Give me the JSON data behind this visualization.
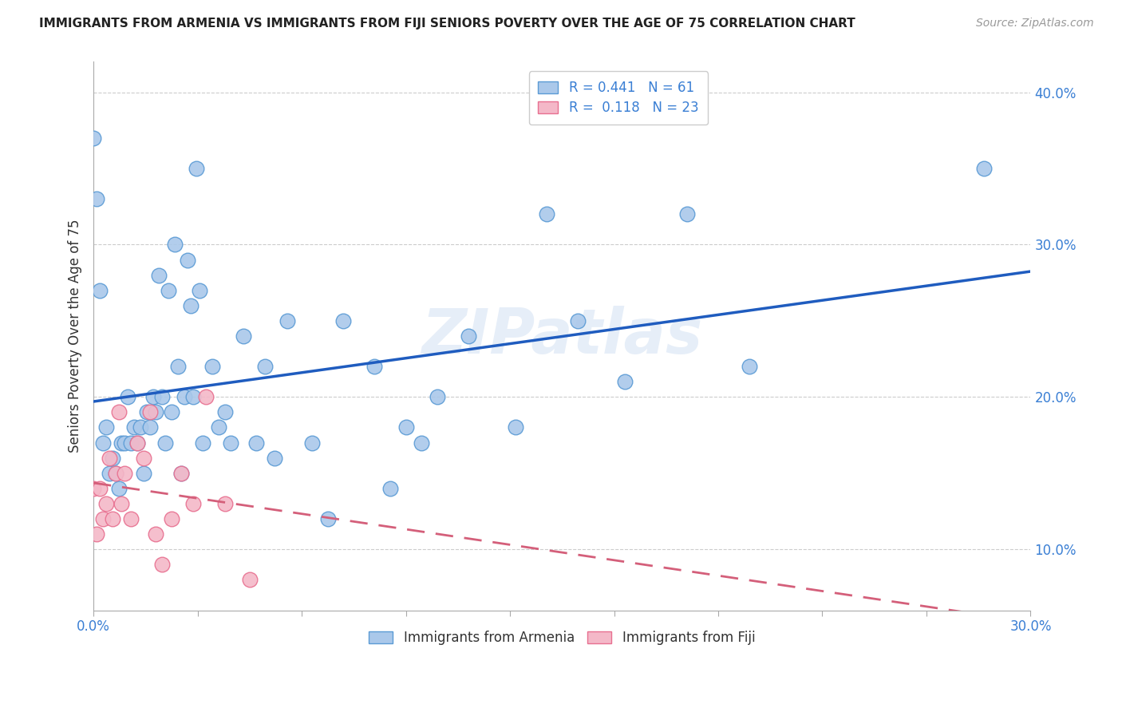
{
  "title": "IMMIGRANTS FROM ARMENIA VS IMMIGRANTS FROM FIJI SENIORS POVERTY OVER THE AGE OF 75 CORRELATION CHART",
  "source": "Source: ZipAtlas.com",
  "ylabel": "Seniors Poverty Over the Age of 75",
  "watermark": "ZIPatlas",
  "legend_label1": "Immigrants from Armenia",
  "legend_label2": "Immigrants from Fiji",
  "R1": 0.441,
  "N1": 61,
  "R2": 0.118,
  "N2": 23,
  "armenia_x": [
    0.0,
    0.001,
    0.002,
    0.003,
    0.004,
    0.005,
    0.006,
    0.007,
    0.008,
    0.009,
    0.01,
    0.011,
    0.012,
    0.013,
    0.014,
    0.015,
    0.016,
    0.017,
    0.018,
    0.019,
    0.02,
    0.021,
    0.022,
    0.023,
    0.024,
    0.025,
    0.026,
    0.027,
    0.028,
    0.029,
    0.03,
    0.031,
    0.032,
    0.033,
    0.034,
    0.035,
    0.038,
    0.04,
    0.042,
    0.044,
    0.048,
    0.052,
    0.055,
    0.058,
    0.062,
    0.07,
    0.075,
    0.08,
    0.09,
    0.095,
    0.1,
    0.105,
    0.11,
    0.12,
    0.135,
    0.145,
    0.155,
    0.17,
    0.19,
    0.21,
    0.285
  ],
  "armenia_y": [
    0.37,
    0.33,
    0.27,
    0.17,
    0.18,
    0.15,
    0.16,
    0.15,
    0.14,
    0.17,
    0.17,
    0.2,
    0.17,
    0.18,
    0.17,
    0.18,
    0.15,
    0.19,
    0.18,
    0.2,
    0.19,
    0.28,
    0.2,
    0.17,
    0.27,
    0.19,
    0.3,
    0.22,
    0.15,
    0.2,
    0.29,
    0.26,
    0.2,
    0.35,
    0.27,
    0.17,
    0.22,
    0.18,
    0.19,
    0.17,
    0.24,
    0.17,
    0.22,
    0.16,
    0.25,
    0.17,
    0.12,
    0.25,
    0.22,
    0.14,
    0.18,
    0.17,
    0.2,
    0.24,
    0.18,
    0.32,
    0.25,
    0.21,
    0.32,
    0.22,
    0.35
  ],
  "fiji_x": [
    0.0,
    0.001,
    0.002,
    0.003,
    0.004,
    0.005,
    0.006,
    0.007,
    0.008,
    0.009,
    0.01,
    0.012,
    0.014,
    0.016,
    0.018,
    0.02,
    0.022,
    0.025,
    0.028,
    0.032,
    0.036,
    0.042,
    0.05
  ],
  "fiji_y": [
    0.14,
    0.11,
    0.14,
    0.12,
    0.13,
    0.16,
    0.12,
    0.15,
    0.19,
    0.13,
    0.15,
    0.12,
    0.17,
    0.16,
    0.19,
    0.11,
    0.09,
    0.12,
    0.15,
    0.13,
    0.2,
    0.13,
    0.08
  ],
  "armenia_color": "#aac8ea",
  "armenia_edge": "#5b9bd5",
  "fiji_color": "#f4b8c8",
  "fiji_edge": "#e87090",
  "line_armenia_color": "#1f5cbf",
  "line_fiji_color": "#d45f7a",
  "xlim": [
    0.0,
    0.3
  ],
  "ylim": [
    0.06,
    0.42
  ],
  "x_tick_positions": [
    0.0,
    0.03333,
    0.06667,
    0.1,
    0.13333,
    0.16667,
    0.2,
    0.23333,
    0.26667,
    0.3
  ],
  "x_tick_labels_show": [
    "0.0%",
    "",
    "",
    "",
    "",
    "",
    "",
    "",
    "",
    "30.0%"
  ],
  "y_ticks": [
    0.1,
    0.2,
    0.3,
    0.4
  ],
  "y_tick_labels": [
    "10.0%",
    "20.0%",
    "30.0%",
    "40.0%"
  ],
  "background_color": "#ffffff",
  "grid_color": "#cccccc",
  "title_fontsize": 11,
  "source_fontsize": 10,
  "tick_color": "#3a7fd4"
}
